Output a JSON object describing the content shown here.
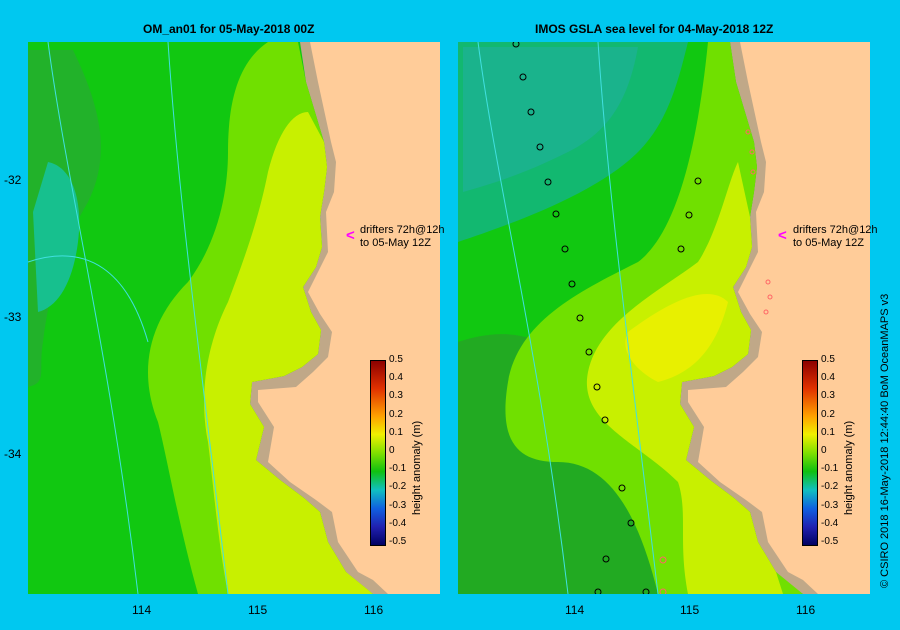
{
  "panels": {
    "left": {
      "title": "OM_an01  for 05-May-2018 00Z"
    },
    "right": {
      "title": "IMOS GSLA sea level  for 04-May-2018 12Z"
    }
  },
  "axes": {
    "lat_labels": [
      "-32",
      "-33",
      "-34"
    ],
    "lon_labels": [
      "114",
      "115",
      "116"
    ]
  },
  "drifters": {
    "line1": "drifters 72h@12h",
    "line2": "to 05-May 12Z",
    "arrow_glyph": "<",
    "arrow_color": "#ff00ff"
  },
  "colorbar": {
    "title": "height anomaly (m)",
    "ticks": [
      "0.5",
      "0.4",
      "0.3",
      "0.2",
      "0.1",
      "0",
      "-0.1",
      "-0.2",
      "-0.3",
      "-0.4",
      "-0.5"
    ],
    "range": [
      -0.5,
      0.5
    ]
  },
  "credit": "© CSIRO 2018   16-May-2018 12:44:40 BoM OceanMAPS v3",
  "colors": {
    "frame": "#00c8f0",
    "land": "#ffcc99",
    "shelf": "#c0a888",
    "isobath": "#40e0e0"
  }
}
